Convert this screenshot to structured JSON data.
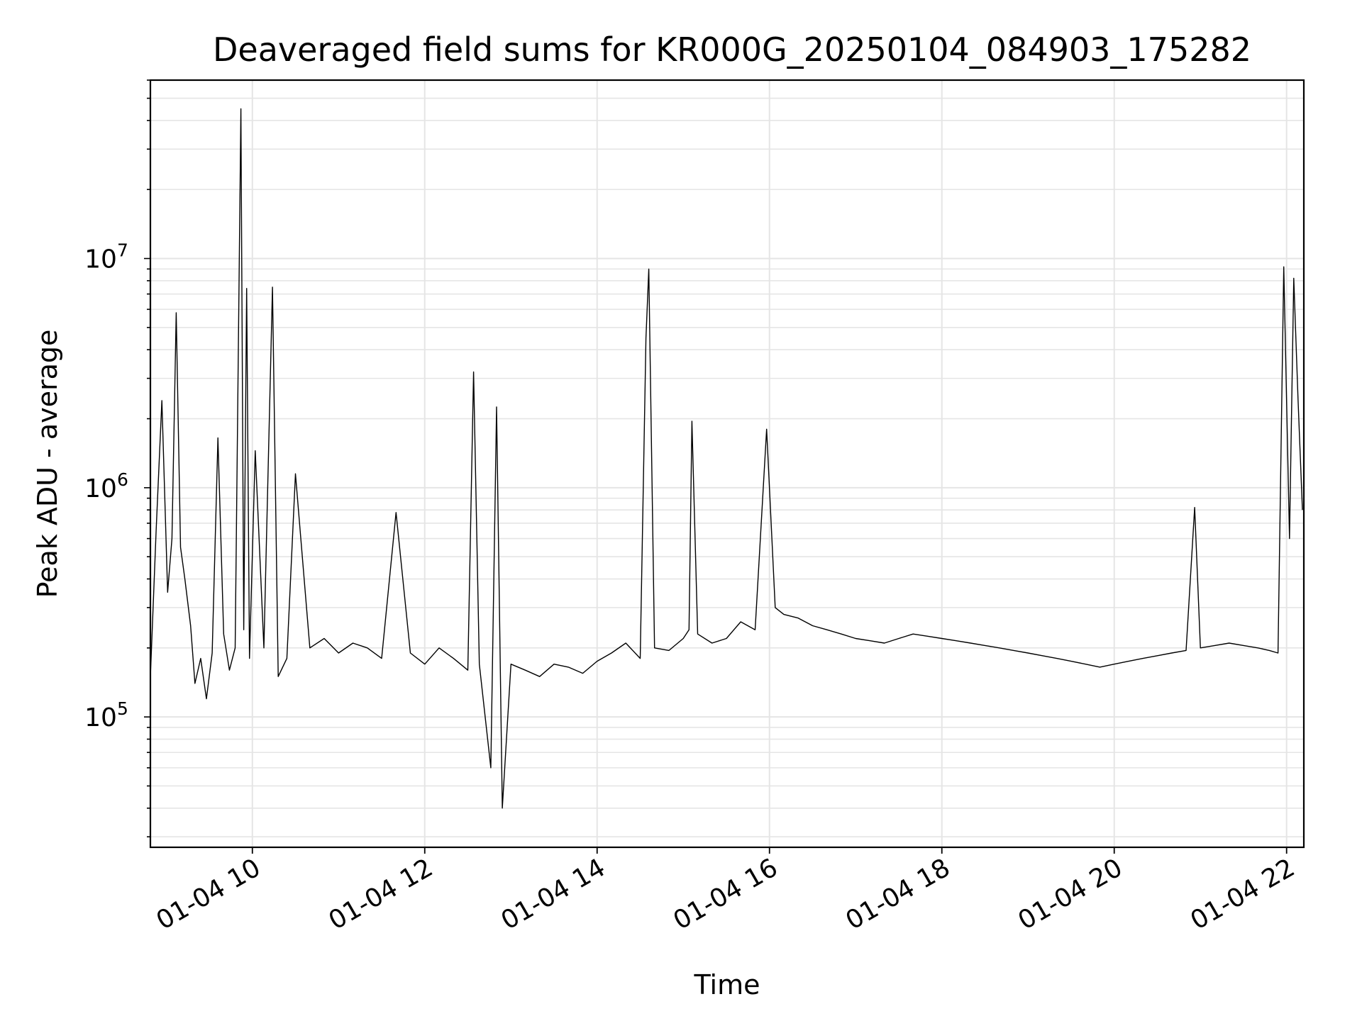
{
  "chart_data": {
    "type": "line",
    "title": "Deaveraged field sums for KR000G_20250104_084903_175282",
    "xlabel": "Time",
    "ylabel": "Peak ADU - average",
    "y_scale": "log",
    "grid": true,
    "legend": "none",
    "line_color": "#000000",
    "grid_color": "#e5e5e5",
    "xlim": [
      "2025-01-04 08:49",
      "2025-01-04 22:12"
    ],
    "ylim": [
      27000,
      60000000
    ],
    "x_ticks": [
      {
        "value": "2025-01-04 10:00",
        "label": "01-04 10"
      },
      {
        "value": "2025-01-04 12:00",
        "label": "01-04 12"
      },
      {
        "value": "2025-01-04 14:00",
        "label": "01-04 14"
      },
      {
        "value": "2025-01-04 16:00",
        "label": "01-04 16"
      },
      {
        "value": "2025-01-04 18:00",
        "label": "01-04 18"
      },
      {
        "value": "2025-01-04 20:00",
        "label": "01-04 20"
      },
      {
        "value": "2025-01-04 22:00",
        "label": "01-04 22"
      }
    ],
    "y_ticks": [
      {
        "value": 100000,
        "base": "10",
        "exp": "5"
      },
      {
        "value": 1000000,
        "base": "10",
        "exp": "6"
      },
      {
        "value": 10000000,
        "base": "10",
        "exp": "7"
      }
    ],
    "series": [
      {
        "x": [
          "2025-01-04 08:49",
          "2025-01-04 08:53",
          "2025-01-04 08:57",
          "2025-01-04 09:01",
          "2025-01-04 09:04",
          "2025-01-04 09:07",
          "2025-01-04 09:10",
          "2025-01-04 09:13",
          "2025-01-04 09:17",
          "2025-01-04 09:20",
          "2025-01-04 09:24",
          "2025-01-04 09:28",
          "2025-01-04 09:32",
          "2025-01-04 09:36",
          "2025-01-04 09:40",
          "2025-01-04 09:44",
          "2025-01-04 09:48",
          "2025-01-04 09:52",
          "2025-01-04 09:54",
          "2025-01-04 09:56",
          "2025-01-04 09:58",
          "2025-01-04 10:02",
          "2025-01-04 10:08",
          "2025-01-04 10:14",
          "2025-01-04 10:18",
          "2025-01-04 10:24",
          "2025-01-04 10:30",
          "2025-01-04 10:40",
          "2025-01-04 10:50",
          "2025-01-04 11:00",
          "2025-01-04 11:10",
          "2025-01-04 11:20",
          "2025-01-04 11:30",
          "2025-01-04 11:40",
          "2025-01-04 11:50",
          "2025-01-04 12:00",
          "2025-01-04 12:10",
          "2025-01-04 12:20",
          "2025-01-04 12:30",
          "2025-01-04 12:34",
          "2025-01-04 12:38",
          "2025-01-04 12:46",
          "2025-01-04 12:50",
          "2025-01-04 12:54",
          "2025-01-04 13:00",
          "2025-01-04 13:10",
          "2025-01-04 13:20",
          "2025-01-04 13:30",
          "2025-01-04 13:40",
          "2025-01-04 13:50",
          "2025-01-04 14:00",
          "2025-01-04 14:10",
          "2025-01-04 14:20",
          "2025-01-04 14:30",
          "2025-01-04 14:34",
          "2025-01-04 14:36",
          "2025-01-04 14:40",
          "2025-01-04 14:50",
          "2025-01-04 15:00",
          "2025-01-04 15:04",
          "2025-01-04 15:06",
          "2025-01-04 15:10",
          "2025-01-04 15:20",
          "2025-01-04 15:30",
          "2025-01-04 15:40",
          "2025-01-04 15:50",
          "2025-01-04 15:58",
          "2025-01-04 16:04",
          "2025-01-04 16:10",
          "2025-01-04 16:20",
          "2025-01-04 16:30",
          "2025-01-04 16:40",
          "2025-01-04 16:50",
          "2025-01-04 17:00",
          "2025-01-04 17:10",
          "2025-01-04 17:20",
          "2025-01-04 17:30",
          "2025-01-04 17:40",
          "2025-01-04 17:50",
          "2025-01-04 18:00",
          "2025-01-04 18:10",
          "2025-01-04 18:20",
          "2025-01-04 18:30",
          "2025-01-04 18:40",
          "2025-01-04 18:50",
          "2025-01-04 19:00",
          "2025-01-04 19:10",
          "2025-01-04 19:20",
          "2025-01-04 19:30",
          "2025-01-04 19:40",
          "2025-01-04 19:50",
          "2025-01-04 20:00",
          "2025-01-04 20:10",
          "2025-01-04 20:20",
          "2025-01-04 20:30",
          "2025-01-04 20:40",
          "2025-01-04 20:50",
          "2025-01-04 20:56",
          "2025-01-04 21:00",
          "2025-01-04 21:10",
          "2025-01-04 21:20",
          "2025-01-04 21:30",
          "2025-01-04 21:40",
          "2025-01-04 21:48",
          "2025-01-04 21:54",
          "2025-01-04 21:58",
          "2025-01-04 22:02",
          "2025-01-04 22:05",
          "2025-01-04 22:08",
          "2025-01-04 22:11"
        ],
        "values": [
          150000,
          650000,
          2400000,
          350000,
          600000,
          5800000,
          550000,
          400000,
          250000,
          140000,
          180000,
          120000,
          190000,
          1650000,
          230000,
          160000,
          200000,
          45000000,
          240000,
          7400000,
          180000,
          1450000,
          200000,
          7500000,
          150000,
          180000,
          1150000,
          200000,
          220000,
          190000,
          210000,
          200000,
          180000,
          780000,
          190000,
          170000,
          200000,
          180000,
          160000,
          3200000,
          170000,
          60000,
          2250000,
          40000,
          170000,
          160000,
          150000,
          170000,
          165000,
          155000,
          175000,
          190000,
          210000,
          180000,
          4500000,
          9000000,
          200000,
          195000,
          220000,
          240000,
          1950000,
          230000,
          210000,
          220000,
          260000,
          240000,
          1800000,
          300000,
          280000,
          270000,
          250000,
          240000,
          230000,
          220000,
          215000,
          210000,
          220000,
          230000,
          225000,
          220000,
          215000,
          210000,
          205000,
          200000,
          195000,
          190000,
          185000,
          180000,
          175000,
          170000,
          165000,
          170000,
          175000,
          180000,
          185000,
          190000,
          195000,
          820000,
          200000,
          205000,
          210000,
          205000,
          200000,
          195000,
          190000,
          9200000,
          600000,
          8200000,
          2400000,
          800000
        ]
      }
    ]
  }
}
